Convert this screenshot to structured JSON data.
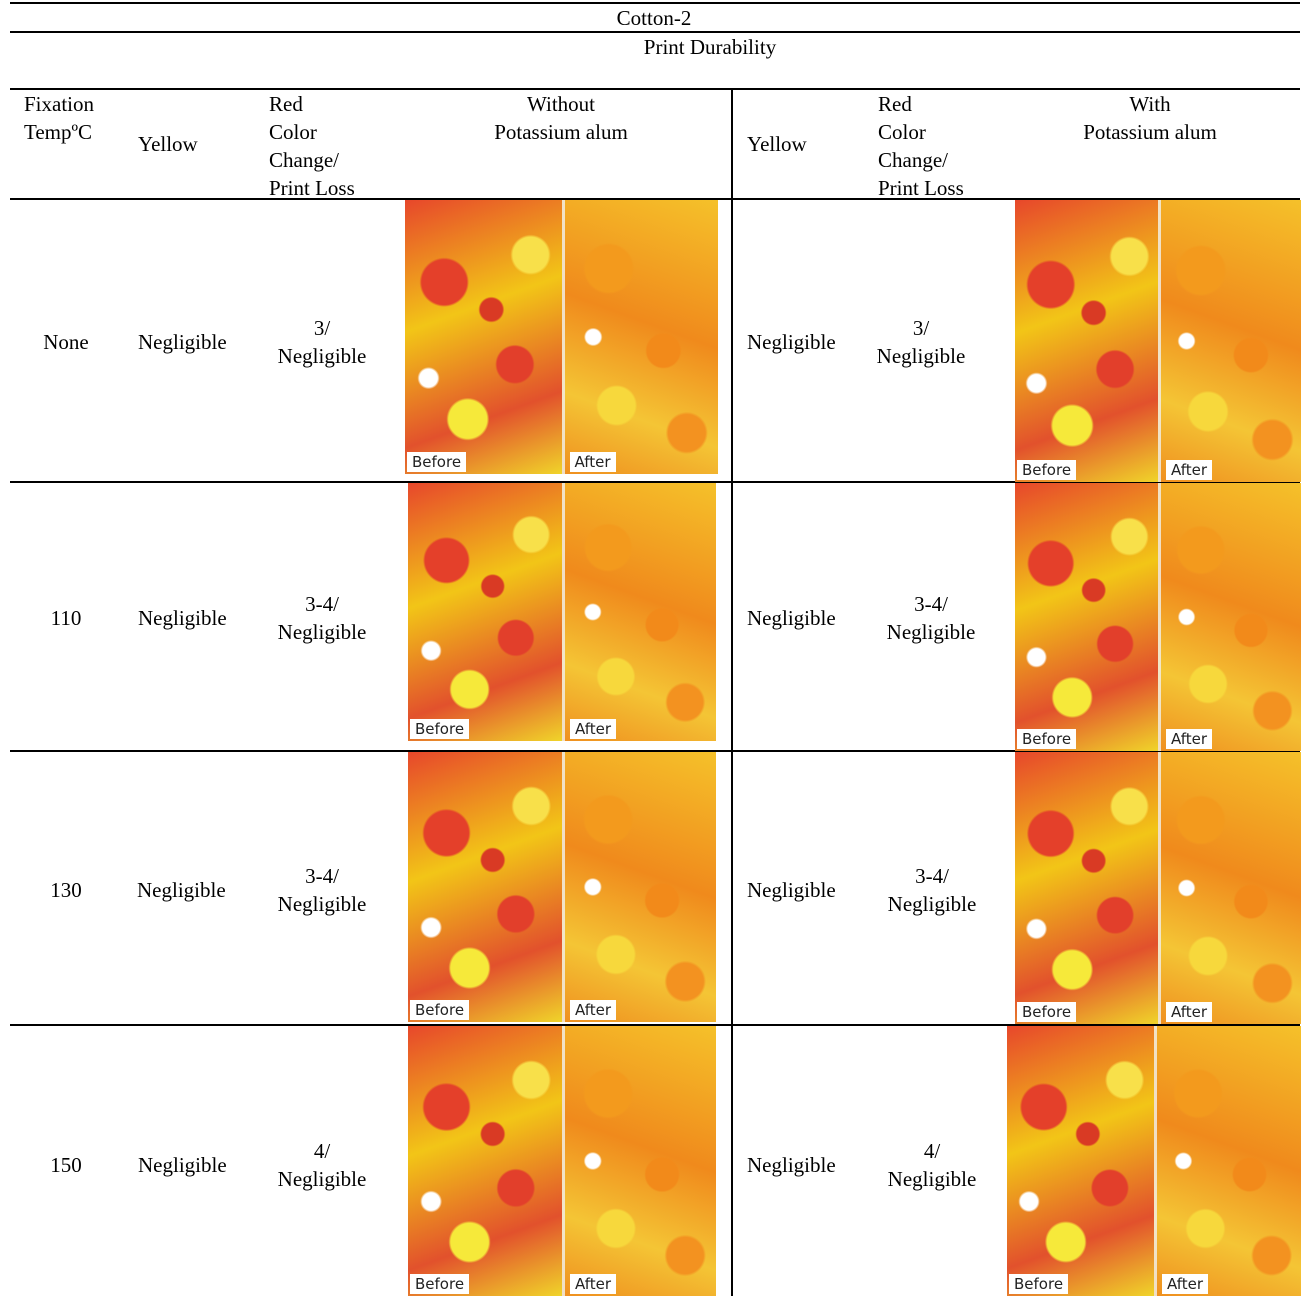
{
  "table": {
    "title": "Cotton-2",
    "subtitle": "Print Durability",
    "headers": {
      "fixation": "Fixation\nTempºC",
      "yellow_without": "Yellow",
      "red_without": "Red\nColor\nChange/\nPrint Loss",
      "without_alum": "Without\nPotassium alum",
      "yellow_with": "Yellow",
      "red_with": "Red\nColor\nChange/\nPrint Loss",
      "with_alum": "With\nPotassium alum"
    },
    "photo_labels": {
      "before": "Before",
      "after": "After"
    },
    "rows": [
      {
        "temp": "None",
        "yellow_without": "Negligible",
        "red_without": "3/\nNegligible",
        "yellow_with": "Negligible",
        "red_with": "3/\nNegligible"
      },
      {
        "temp": "110",
        "yellow_without": "Negligible",
        "red_without": "3-4/\nNegligible",
        "yellow_with": "Negligible",
        "red_with": "3-4/\nNegligible"
      },
      {
        "temp": "130",
        "yellow_without": "Negligible",
        "red_without": "3-4/\nNegligible",
        "yellow_with": "Negligible",
        "red_with": "3-4/\nNegligible"
      },
      {
        "temp": "150",
        "yellow_without": "Negligible",
        "red_without": "4/\nNegligible",
        "yellow_with": "Negligible",
        "red_with": "4/\nNegligible"
      }
    ]
  }
}
